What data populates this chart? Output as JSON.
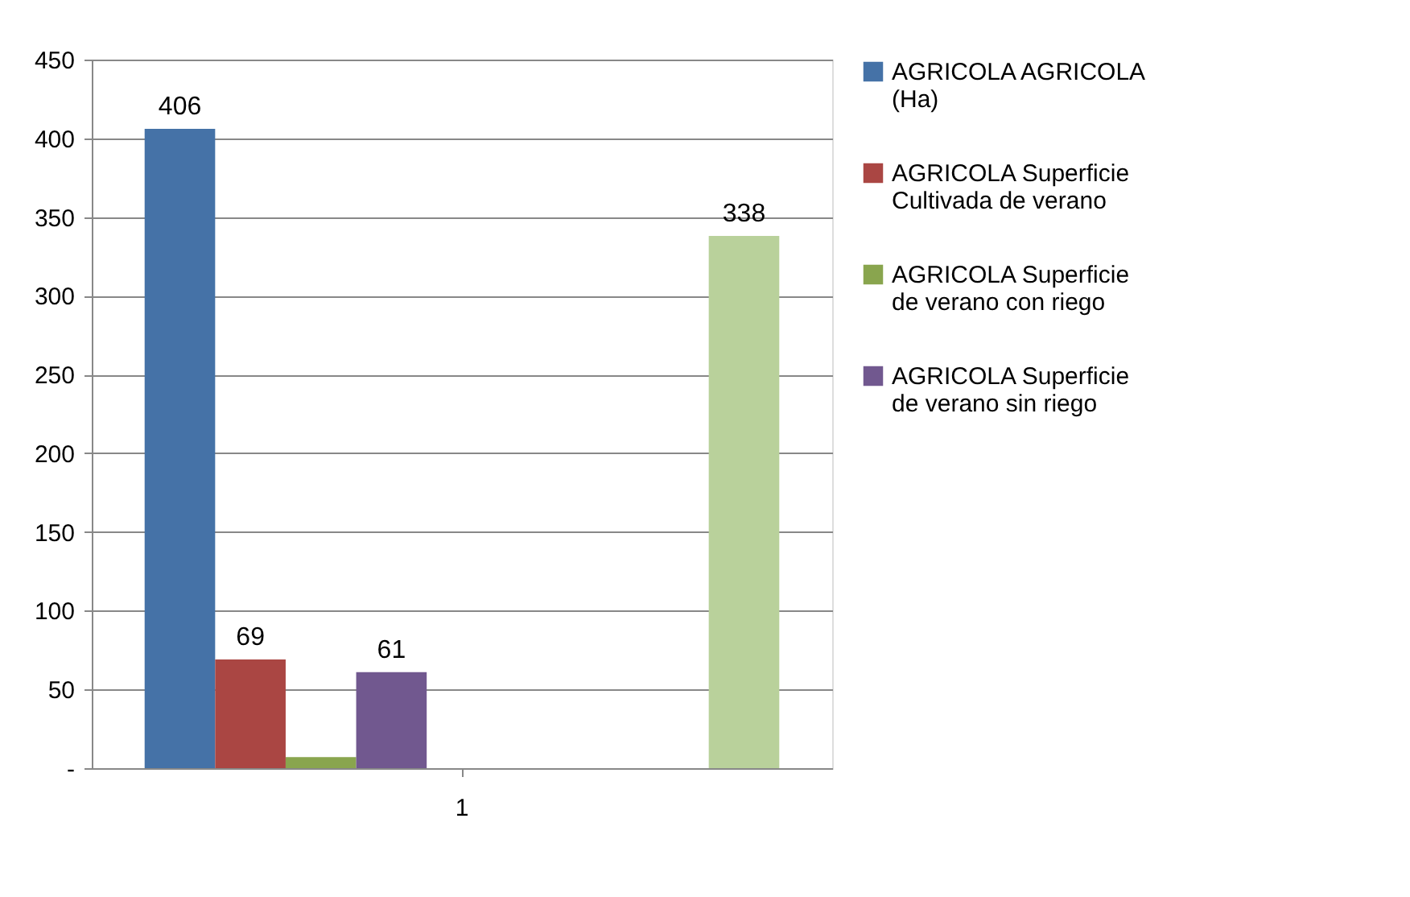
{
  "chart_data": {
    "type": "bar",
    "categories": [
      "1"
    ],
    "series": [
      {
        "name": "AGRICOLA AGRICOLA (Ha)",
        "color": "#4572a7",
        "values": [
          406
        ],
        "value_labels": [
          "406"
        ]
      },
      {
        "name": "AGRICOLA Superficie Cultivada de verano",
        "color": "#aa4643",
        "values": [
          69
        ],
        "value_labels": [
          "69"
        ]
      },
      {
        "name": "AGRICOLA Superficie de verano con riego",
        "color": "#89a54e",
        "values": [
          7
        ],
        "value_labels": [
          null
        ]
      },
      {
        "name": "AGRICOLA Superficie de verano sin riego",
        "color": "#71588f",
        "values": [
          61
        ],
        "value_labels": [
          "61"
        ]
      },
      {
        "values": [
          null
        ]
      },
      {
        "values": [
          null
        ]
      },
      {
        "values": [
          null
        ]
      },
      {
        "values": [
          null
        ]
      },
      {
        "color": "#b9d19b",
        "values": [
          338
        ],
        "value_labels": [
          "338"
        ]
      }
    ],
    "ylim": [
      0,
      450
    ],
    "yticks": [
      {
        "value": 0,
        "label": "-"
      },
      50,
      100,
      150,
      200,
      250,
      300,
      350,
      400,
      450
    ],
    "grid": "y",
    "legend": "right"
  }
}
